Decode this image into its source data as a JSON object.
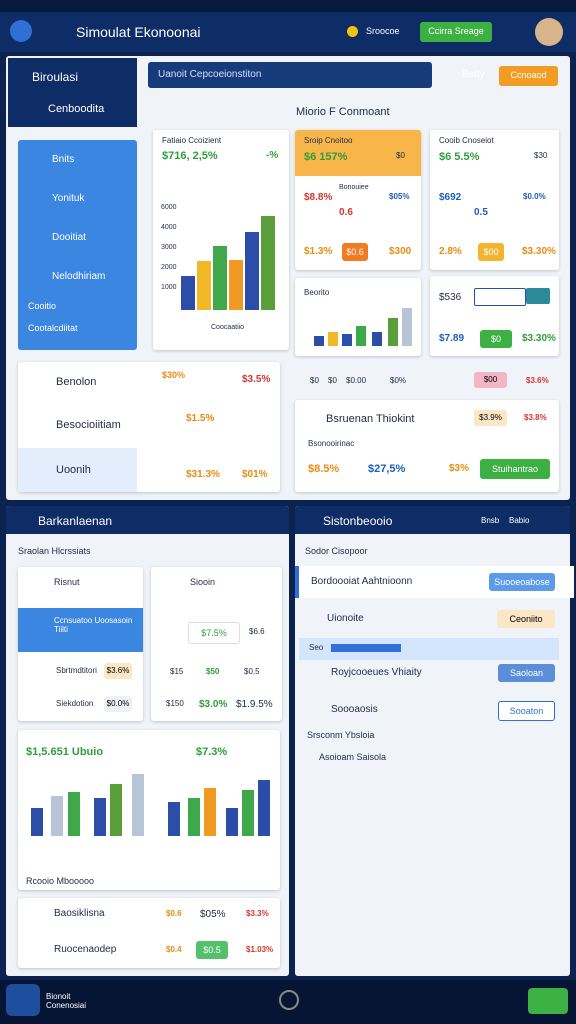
{
  "header": {
    "title": "Simoulat Ekonoonai",
    "coin": "Sroocoe",
    "button": "Ccirra Sreage"
  },
  "sidebar": {
    "title": "Biroulasi",
    "subtitle": "Cenboodita",
    "menu": [
      "Bnits",
      "Yonituk",
      "Dooitiat",
      "Nelodhiriam"
    ],
    "links": [
      "Cooitio",
      "Cootalcdiitat"
    ]
  },
  "search": {
    "placeholder": "Uanoit Cepcoeionstiton",
    "user": "Betty",
    "button": "Ccnoaod"
  },
  "panel": {
    "title": "Miorio F Conmoant",
    "card_a": {
      "title": "Fatiaio Ccoizient",
      "value": "$716, 2,5%",
      "change": "-%",
      "ticks": [
        "6000",
        "4000",
        "3000",
        "2000",
        "1000"
      ],
      "legend": "Coocaatiio"
    },
    "card_b": {
      "title": "Sroip Cnoitoo",
      "value": "$6 157%",
      "badge": "$0",
      "r1": [
        "$8.8%",
        "Bonouiee",
        "$05%"
      ],
      "r1b": "0.6",
      "r2": [
        "$1.3%",
        "$0.6",
        "$300"
      ]
    },
    "card_c": {
      "title": "Cooib Cnoseiot",
      "value": "$6 5.5%",
      "side": "$30",
      "r1": [
        "$692",
        "$0.0%"
      ],
      "r1b": "0.5",
      "r2": [
        "2.8%",
        "$00",
        "$3.30%"
      ]
    },
    "card_d": {
      "title": "Beorito"
    },
    "card_e": {
      "value": "$536",
      "r2": [
        "$7.89",
        "$0",
        "$3.30%"
      ]
    },
    "list": [
      {
        "name": "Benolon",
        "a": "$30%",
        "b": "$3.5%"
      },
      {
        "name": "Besocioiitiam",
        "a": "$1.5%",
        "b": ""
      },
      {
        "name": "Uoonih",
        "a": "$31.3%",
        "b": "$01%"
      }
    ],
    "row1": [
      "$0",
      "$0",
      "$0.00",
      "$0%",
      "$00",
      "$3.6%"
    ],
    "detail": {
      "title": "Bsruenan Thiokint",
      "a": "$3.9%",
      "b": "$3.8%",
      "sub": "Bsonooirinac",
      "vals": [
        "$8.5%",
        "$27,5%",
        "$3%"
      ],
      "button": "Stuihantrao"
    }
  },
  "left": {
    "title": "Barkanlaenan",
    "subtitle": "Sraolan Hlcrssiats",
    "card1": {
      "title": "Risnut",
      "block": "Ccnsuatoo Uoosasoin Tiilti",
      "rows": [
        [
          "Sbrtmdtitori",
          "$3.6%"
        ],
        [
          "Siekdotion",
          "$0.0%"
        ]
      ]
    },
    "card2": {
      "title": "Siooin",
      "value": "$7.5%",
      "side": "$6.6",
      "row1": [
        "$15",
        "$50",
        "$0.5"
      ],
      "row2": [
        "$150",
        "$3.0%",
        "$1.9.5%"
      ]
    },
    "chart": {
      "title": "$1,5.651 Ubuio",
      "value": "$7.3%",
      "footer": "Rcooio Mbooooo"
    },
    "items": [
      {
        "name": "Baosiklisna",
        "v": [
          "$0.6",
          "$05%",
          "$3.3%"
        ]
      },
      {
        "name": "Ruocenaodep",
        "v": [
          "$0.4",
          "$0.5",
          "$1.03%"
        ]
      }
    ]
  },
  "right": {
    "title": "Sistonbeooio",
    "tabs": [
      "Bnsb",
      "Babio"
    ],
    "subtitle": "Sodor Cisopoor",
    "rows": [
      {
        "name": "Bordoooiat Aahtnioonn",
        "button": "Suooeoabose"
      },
      {
        "name": "Uionoite",
        "button": "Ceoniito"
      },
      {
        "name": "Royjcooeues Vhiaity",
        "button": "Saoloan"
      },
      {
        "name": "Soooaosis",
        "button": "Sooaton"
      }
    ],
    "bar": "Seo",
    "links": [
      "Srsconm Ybsloia",
      "Asoioam Saisola"
    ]
  },
  "nav": {
    "label": "Bionoit Conenosiai"
  }
}
